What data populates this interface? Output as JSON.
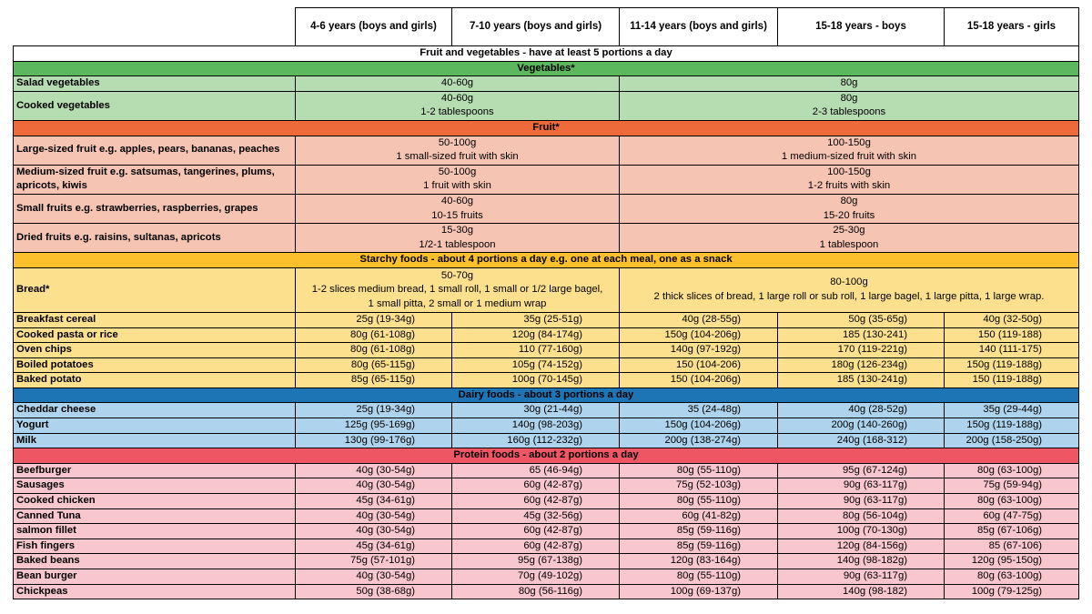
{
  "columns": [
    "4-6 years (boys and girls)",
    "7-10 years (boys and girls)",
    "11-14 years (boys and girls)",
    "15-18 years - boys",
    "15-18 years - girls"
  ],
  "title": "Fruit and vegetables - have at least 5 portions a day",
  "vegetables": {
    "heading": "Vegetables*",
    "rows": [
      {
        "label": "Salad vegetables",
        "young": [
          "40-60g"
        ],
        "old": [
          "80g"
        ]
      },
      {
        "label": "Cooked vegetables",
        "young": [
          "40-60g",
          "1-2 tablespoons"
        ],
        "old": [
          "80g",
          "2-3 tablespoons"
        ]
      }
    ]
  },
  "fruit": {
    "heading": "Fruit*",
    "rows": [
      {
        "label": "Large-sized fruit e.g. apples, pears, bananas, peaches",
        "young": [
          "50-100g",
          "1 small-sized fruit with skin"
        ],
        "old": [
          "100-150g",
          "1 medium-sized fruit with skin"
        ]
      },
      {
        "label": "Medium-sized fruit e.g. satsumas, tangerines, plums, apricots, kiwis",
        "young": [
          "50-100g",
          "1 fruit with skin"
        ],
        "old": [
          "100-150g",
          "1-2 fruits with skin"
        ]
      },
      {
        "label": "Small fruits e.g. strawberries, raspberries, grapes",
        "young": [
          "40-60g",
          "10-15 fruits"
        ],
        "old": [
          "80g",
          "15-20 fruits"
        ]
      },
      {
        "label": "Dried fruits e.g. raisins, sultanas, apricots",
        "young": [
          "15-30g",
          "1/2-1 tablespoon"
        ],
        "old": [
          "25-30g",
          "1 tablespoon"
        ]
      }
    ]
  },
  "starchy": {
    "heading": "Starchy foods - about 4 portions a day e.g. one at each meal, one as a snack",
    "bread": {
      "label": "Bread*",
      "young": [
        "50-70g",
        "1-2 slices medium bread, 1 small roll, 1 small or 1/2 large bagel,",
        "1 small pitta, 2 small or 1 medium wrap"
      ],
      "old": [
        "80-100g",
        "2 thick slices of bread, 1 large roll or sub roll, 1 large bagel, 1 large pitta, 1 large wrap."
      ]
    },
    "rows": [
      {
        "label": "Breakfast cereal",
        "values": [
          "25g (19-34g)",
          "35g (25-51g)",
          "40g (28-55g)",
          "50g (35-65g)",
          "40g (32-50g)"
        ]
      },
      {
        "label": "Cooked pasta or rice",
        "values": [
          "80g (61-108g)",
          "120g (84-174g)",
          "150g (104-206g)",
          "185 (130-241)",
          "150 (119-188)"
        ]
      },
      {
        "label": "Oven chips",
        "values": [
          "80g (61-108g)",
          "110 (77-160g)",
          "140g (97-192g)",
          "170 (119-221g)",
          "140 (111-175)"
        ]
      },
      {
        "label": "Boiled potatoes",
        "values": [
          "80g (65-115g)",
          "105g (74-152g)",
          "150 (104-206)",
          "180g (126-234g)",
          "150g (119-188g)"
        ]
      },
      {
        "label": "Baked potato",
        "values": [
          "85g (65-115g)",
          "100g (70-145g)",
          "150 (104-206g)",
          "185 (130-241g)",
          "150 (119-188g)"
        ]
      }
    ]
  },
  "dairy": {
    "heading": "Dairy foods - about 3 portions a day",
    "rows": [
      {
        "label": "Cheddar cheese",
        "values": [
          "25g (19-34g)",
          "30g (21-44g)",
          "35 (24-48g)",
          "40g (28-52g)",
          "35g (29-44g)"
        ]
      },
      {
        "label": "Yogurt",
        "values": [
          "125g (95-169g)",
          "140g (98-203g)",
          "150g (104-206g)",
          "200g (140-260g)",
          "150g (119-188g)"
        ]
      },
      {
        "label": "Milk",
        "values": [
          "130g (99-176g)",
          "160g (112-232g)",
          "200g (138-274g)",
          "240g (168-312)",
          "200g (158-250g)"
        ]
      }
    ]
  },
  "protein": {
    "heading": "Protein foods - about 2 portions a day",
    "rows": [
      {
        "label": "Beefburger",
        "values": [
          "40g (30-54g)",
          "65 (46-94g)",
          "80g (55-110g)",
          "95g (67-124g)",
          "80g (63-100g)"
        ]
      },
      {
        "label": "Sausages",
        "values": [
          "40g (30-54g)",
          "60g (42-87g)",
          "75g (52-103g)",
          "90g (63-117g)",
          "75g (59-94g)"
        ]
      },
      {
        "label": "Cooked chicken",
        "values": [
          "45g (34-61g)",
          "60g (42-87g)",
          "80g (55-110g)",
          "90g (63-117g)",
          "80g (63-100g)"
        ]
      },
      {
        "label": "Canned Tuna",
        "values": [
          "40g (30-54g)",
          "45g (32-56g)",
          "60g (41-82g)",
          "80g (56-104g)",
          "60g (47-75g)"
        ]
      },
      {
        "label": "salmon fillet",
        "values": [
          "40g (30-54g)",
          "60g (42-87g)",
          "85g (59-116g)",
          "100g (70-130g)",
          "85g (67-106g)"
        ]
      },
      {
        "label": "Fish fingers",
        "values": [
          "45g (34-61g)",
          "60g (42-87g)",
          "85g (59-116g)",
          "120g (84-156g)",
          "85 (67-106)"
        ]
      },
      {
        "label": "Baked beans",
        "values": [
          "75g (57-101g)",
          "95g (67-138g)",
          "120g (83-164g)",
          "140g (98-182g)",
          "120g (95-150g)"
        ]
      },
      {
        "label": "Bean burger",
        "values": [
          "40g (30-54g)",
          "70g (49-102g)",
          "80g (55-110g)",
          "90g (63-117g)",
          "80g (63-100g)"
        ]
      },
      {
        "label": "Chickpeas",
        "values": [
          "50g (38-68g)",
          "80g (56-116g)",
          "100g (69-137g)",
          "140g (98-182)",
          "100g (79-125g)"
        ]
      }
    ]
  }
}
